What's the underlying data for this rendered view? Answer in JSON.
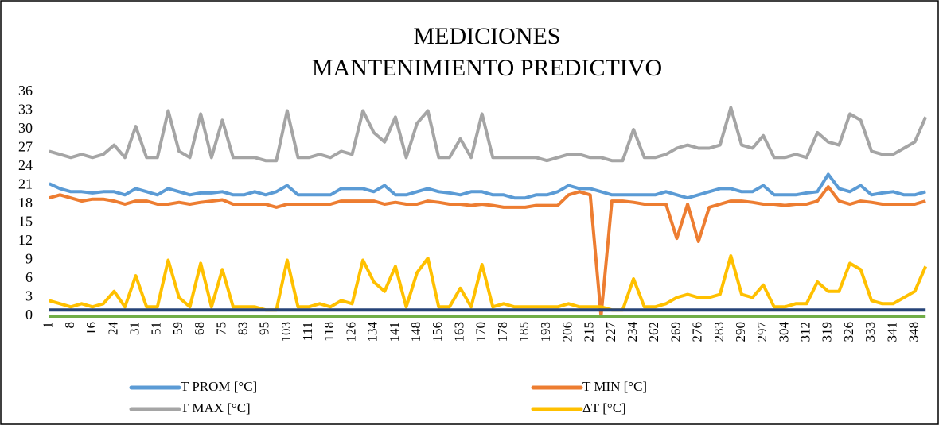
{
  "chart_data": {
    "type": "line",
    "title": [
      "MEDICIONES",
      "MANTENIMIENTO PREDICTIVO"
    ],
    "categories": [
      "1",
      null,
      "8",
      null,
      "16",
      null,
      "24",
      null,
      "31",
      null,
      "51",
      null,
      "59",
      null,
      "68",
      null,
      "75",
      null,
      "83",
      null,
      "95",
      null,
      "103",
      null,
      "111",
      null,
      "118",
      null,
      "126",
      null,
      "134",
      null,
      "141",
      null,
      "148",
      null,
      "156",
      null,
      "163",
      null,
      "170",
      null,
      "178",
      null,
      "185",
      null,
      "193",
      null,
      "206",
      null,
      "215",
      null,
      "227",
      null,
      "234",
      null,
      "262",
      null,
      "269",
      null,
      "276",
      null,
      "283",
      null,
      "290",
      null,
      "297",
      null,
      "304",
      null,
      "312",
      null,
      "319",
      null,
      "326",
      null,
      "333",
      null,
      "341",
      null,
      "348",
      null
    ],
    "series": [
      {
        "name": "T PROM [°C]",
        "color": "#5b9bd5",
        "values": [
          21.3,
          20.5,
          20,
          20,
          19.8,
          20,
          20,
          19.5,
          20.5,
          20,
          19.5,
          20.5,
          20,
          19.5,
          19.8,
          19.8,
          20,
          19.5,
          19.5,
          20,
          19.5,
          20,
          21,
          19.5,
          19.5,
          19.5,
          19.5,
          20.5,
          20.5,
          20.5,
          20,
          21,
          19.5,
          19.5,
          20,
          20.5,
          20,
          19.8,
          19.5,
          20,
          20,
          19.5,
          19.5,
          19,
          19,
          19.5,
          19.5,
          20,
          21,
          20.5,
          20.5,
          20,
          19.5,
          19.5,
          19.5,
          19.5,
          19.5,
          20,
          19.5,
          19,
          19.5,
          20,
          20.5,
          20.5,
          20,
          20,
          21,
          19.5,
          19.5,
          19.5,
          19.8,
          20,
          22.8,
          20.5,
          20,
          21,
          19.5,
          19.8,
          20,
          19.5,
          19.5,
          20
        ]
      },
      {
        "name": "T MIN [°C]",
        "color": "#ed7d31",
        "values": [
          19,
          19.5,
          19,
          18.5,
          18.8,
          18.8,
          18.5,
          18,
          18.5,
          18.5,
          18,
          18,
          18.3,
          18,
          18.3,
          18.5,
          18.7,
          18,
          18,
          18,
          18,
          17.5,
          18,
          18,
          18,
          18,
          18,
          18.5,
          18.5,
          18.5,
          18.5,
          18,
          18.3,
          18,
          18,
          18.5,
          18.3,
          18,
          18,
          17.8,
          18,
          17.8,
          17.5,
          17.5,
          17.5,
          17.8,
          17.8,
          17.8,
          19.5,
          20,
          19.5,
          0,
          18.5,
          18.5,
          18.3,
          18,
          18,
          18,
          12.5,
          18,
          12,
          17.5,
          18,
          18.5,
          18.5,
          18.3,
          18,
          18,
          17.8,
          18,
          18,
          18.5,
          20.8,
          18.5,
          18,
          18.5,
          18.3,
          18,
          18,
          18,
          18,
          18.5
        ]
      },
      {
        "name": "T MAX [°C]",
        "color": "#a5a5a5",
        "values": [
          26.5,
          26,
          25.5,
          26,
          25.5,
          26,
          27.5,
          25.5,
          30.5,
          25.5,
          25.5,
          33,
          26.5,
          25.5,
          32.5,
          25.5,
          31.5,
          25.5,
          25.5,
          25.5,
          25,
          25,
          33,
          25.5,
          25.5,
          26,
          25.5,
          26.5,
          26,
          33,
          29.5,
          28,
          32,
          25.5,
          31,
          33,
          25.5,
          25.5,
          28.5,
          25.5,
          32.5,
          25.5,
          25.5,
          25.5,
          25.5,
          25.5,
          25,
          25.5,
          26,
          26,
          25.5,
          25.5,
          25,
          25,
          30,
          25.5,
          25.5,
          26,
          27,
          27.5,
          27,
          27,
          27.5,
          33.5,
          27.5,
          27,
          29,
          25.5,
          25.5,
          26,
          25.5,
          29.5,
          28,
          27.5,
          32.5,
          31.5,
          26.5,
          26,
          26,
          27,
          28,
          32
        ]
      },
      {
        "name": "ΔT [°C]",
        "color": "#ffc000",
        "values": [
          2.5,
          2,
          1.5,
          2,
          1.5,
          2,
          4,
          1.5,
          6.5,
          1.5,
          1.5,
          9,
          3,
          1.5,
          8.5,
          1.5,
          7.5,
          1.5,
          1.5,
          1.5,
          1,
          1,
          9,
          1.5,
          1.5,
          2,
          1.5,
          2.5,
          2,
          9,
          5.5,
          4,
          8,
          1.5,
          7,
          9.3,
          1.5,
          1.5,
          4.5,
          1.5,
          8.3,
          1.5,
          2,
          1.5,
          1.5,
          1.5,
          1.5,
          1.5,
          2,
          1.5,
          1.5,
          1.5,
          1,
          1,
          6,
          1.5,
          1.5,
          2,
          3,
          3.5,
          3,
          3,
          3.5,
          9.7,
          3.5,
          3,
          5,
          1.5,
          1.5,
          2,
          2,
          5.5,
          4,
          4,
          8.5,
          7.5,
          2.5,
          2,
          2,
          3,
          4,
          8
        ]
      },
      {
        "color": "#264478",
        "values": [
          1,
          1,
          1,
          1,
          1,
          1,
          1,
          1,
          1,
          1,
          1,
          1,
          1,
          1,
          1,
          1,
          1,
          1,
          1,
          1,
          1,
          1,
          1,
          1,
          1,
          1,
          1,
          1,
          1,
          1,
          1,
          1,
          1,
          1,
          1,
          1,
          1,
          1,
          1,
          1,
          1,
          1,
          1,
          1,
          1,
          1,
          1,
          1,
          1,
          1,
          1,
          1,
          1,
          1,
          1,
          1,
          1,
          1,
          1,
          1,
          1,
          1,
          1,
          1,
          1,
          1,
          1,
          1,
          1,
          1,
          1,
          1,
          1,
          1,
          1,
          1,
          1,
          1,
          1,
          1,
          1,
          1
        ]
      },
      {
        "color": "#70ad47",
        "values": [
          0,
          0,
          0,
          0,
          0,
          0,
          0,
          0,
          0,
          0,
          0,
          0,
          0,
          0,
          0,
          0,
          0,
          0,
          0,
          0,
          0,
          0,
          0,
          0,
          0,
          0,
          0,
          0,
          0,
          0,
          0,
          0,
          0,
          0,
          0,
          0,
          0,
          0,
          0,
          0,
          0,
          0,
          0,
          0,
          0,
          0,
          0,
          0,
          0,
          0,
          0,
          0,
          0,
          0,
          0,
          0,
          0,
          0,
          0,
          0,
          0,
          0,
          0,
          0,
          0,
          0,
          0,
          0,
          0,
          0,
          0,
          0,
          0,
          0,
          0,
          0,
          0,
          0,
          0,
          0,
          0,
          0
        ]
      }
    ],
    "ylim": [
      0,
      36
    ],
    "yticks": [
      0,
      3,
      6,
      9,
      12,
      15,
      18,
      21,
      24,
      27,
      30,
      33,
      36
    ],
    "grid": false
  }
}
